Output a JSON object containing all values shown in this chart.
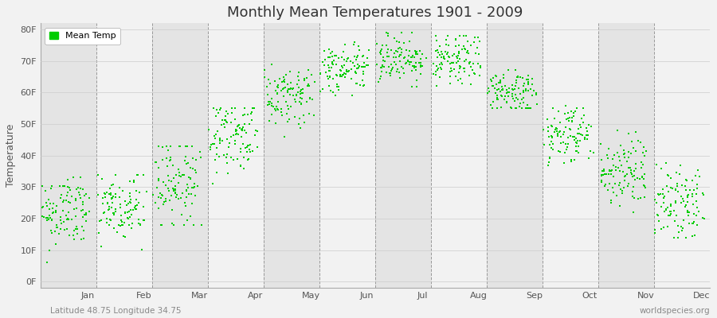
{
  "title": "Monthly Mean Temperatures 1901 - 2009",
  "ylabel": "Temperature",
  "xlabel_months": [
    "Jan",
    "Feb",
    "Mar",
    "Apr",
    "May",
    "Jun",
    "Jul",
    "Aug",
    "Sep",
    "Oct",
    "Nov",
    "Dec"
  ],
  "yticks": [
    0,
    10,
    20,
    30,
    40,
    50,
    60,
    70,
    80
  ],
  "ytick_labels": [
    "0F",
    "10F",
    "20F",
    "30F",
    "40F",
    "50F",
    "60F",
    "70F",
    "80F"
  ],
  "dot_color": "#00CC00",
  "dot_size": 4,
  "bg_color": "#F2F2F2",
  "band_color_dark": "#E4E4E4",
  "band_color_light": "#F2F2F2",
  "legend_label": "Mean Temp",
  "footer_left": "Latitude 48.75 Longitude 34.75",
  "footer_right": "worldspecies.org",
  "n_years": 109,
  "monthly_means_F": [
    22,
    23,
    32,
    47,
    59,
    67,
    71,
    70,
    60,
    47,
    35,
    25
  ],
  "monthly_stds_F": [
    6,
    6,
    7,
    6,
    5,
    4,
    4,
    4,
    4,
    5,
    6,
    6
  ],
  "monthly_min_F": [
    5,
    5,
    18,
    30,
    46,
    59,
    62,
    62,
    55,
    37,
    22,
    14
  ],
  "monthly_max_F": [
    33,
    34,
    43,
    55,
    69,
    76,
    79,
    78,
    74,
    60,
    51,
    39
  ]
}
